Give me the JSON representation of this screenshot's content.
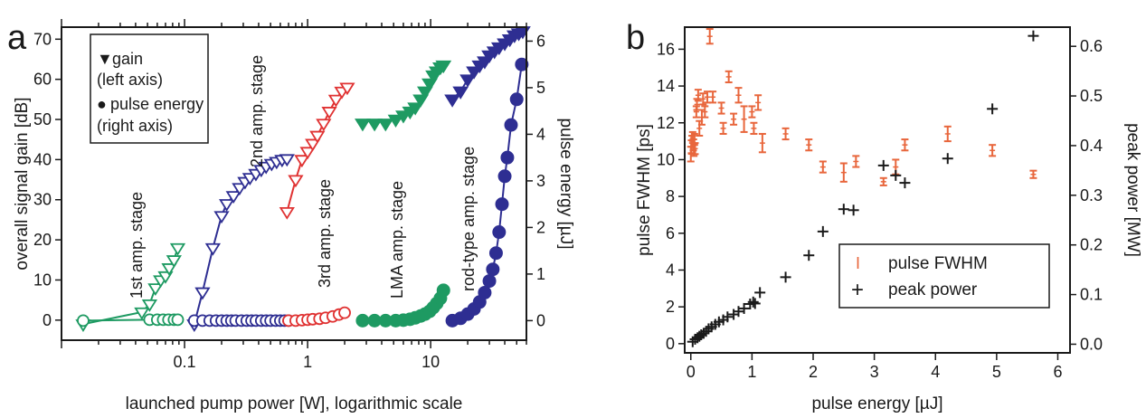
{
  "chart_data": [
    {
      "panel": "a",
      "type": "line",
      "xlabel": "launched pump power [W], logarithmic scale",
      "ylabel": "overall signal gain [dB]",
      "y2label": "pulse energy [µJ]",
      "xscale": "log",
      "xlim": [
        0.01,
        60
      ],
      "ylim": [
        -5,
        73
      ],
      "y2lim": [
        -0.42,
        6.3
      ],
      "xticks": [
        {
          "v": 0.1,
          "label": "0.1"
        },
        {
          "v": 1,
          "label": "1"
        },
        {
          "v": 10,
          "label": "10"
        }
      ],
      "yticks": [
        "0",
        "10",
        "20",
        "30",
        "40",
        "50",
        "60",
        "70"
      ],
      "y2ticks": [
        "0",
        "1",
        "2",
        "3",
        "4",
        "5",
        "6"
      ],
      "legend": {
        "placement": "top-left",
        "entries": [
          {
            "marker": "▼",
            "line1": "gain",
            "line2": "(left axis)"
          },
          {
            "marker": "●",
            "line1": "pulse energy",
            "line2": "(right axis)"
          }
        ]
      },
      "annotations": [
        "1st amp. stage",
        "2nd amp. stage",
        "3rd amp. stage",
        "LMA amp. stage",
        "rod-type amp. stage"
      ],
      "series": [
        {
          "stage": "1st",
          "axis": "left",
          "marker": "triangle-open",
          "line": true,
          "color": "#1e9a62",
          "points": [
            [
              0.015,
              -1
            ],
            [
              0.045,
              2
            ],
            [
              0.052,
              4
            ],
            [
              0.058,
              8
            ],
            [
              0.064,
              10
            ],
            [
              0.07,
              11
            ],
            [
              0.075,
              13
            ],
            [
              0.082,
              15
            ],
            [
              0.088,
              18
            ]
          ]
        },
        {
          "stage": "1st",
          "axis": "right",
          "marker": "circle-open",
          "line": true,
          "color": "#1e9a62",
          "points": [
            [
              0.015,
              0.0
            ],
            [
              0.052,
              0.02
            ],
            [
              0.06,
              0.02
            ],
            [
              0.067,
              0.02
            ],
            [
              0.074,
              0.02
            ],
            [
              0.082,
              0.02
            ],
            [
              0.088,
              0.02
            ]
          ]
        },
        {
          "stage": "2nd",
          "axis": "left",
          "marker": "triangle-open",
          "line": true,
          "color": "#2e2e92",
          "points": [
            [
              0.12,
              -1
            ],
            [
              0.14,
              7
            ],
            [
              0.17,
              18
            ],
            [
              0.2,
              26
            ],
            [
              0.22,
              29
            ],
            [
              0.25,
              31
            ],
            [
              0.28,
              33
            ],
            [
              0.31,
              34.5
            ],
            [
              0.34,
              35.5
            ],
            [
              0.38,
              36.5
            ],
            [
              0.42,
              37.5
            ],
            [
              0.46,
              38.3
            ],
            [
              0.51,
              39
            ],
            [
              0.56,
              39.5
            ],
            [
              0.62,
              40
            ],
            [
              0.68,
              40.2
            ]
          ]
        },
        {
          "stage": "2nd",
          "axis": "right",
          "marker": "circle-open",
          "line": true,
          "color": "#2e2e92",
          "points": [
            [
              0.12,
              0.0
            ],
            [
              0.14,
              0.0
            ],
            [
              0.16,
              0.0
            ],
            [
              0.18,
              0.0
            ],
            [
              0.2,
              0.0
            ],
            [
              0.22,
              0.0
            ],
            [
              0.24,
              0.0
            ],
            [
              0.26,
              0.0
            ],
            [
              0.29,
              0.0
            ],
            [
              0.32,
              0.0
            ],
            [
              0.35,
              0.0
            ],
            [
              0.38,
              0.0
            ],
            [
              0.42,
              0.0
            ],
            [
              0.46,
              0.0
            ],
            [
              0.5,
              0.0
            ],
            [
              0.55,
              0.0
            ],
            [
              0.6,
              0.0
            ],
            [
              0.65,
              0.0
            ],
            [
              0.7,
              0.0
            ]
          ]
        },
        {
          "stage": "3rd",
          "axis": "left",
          "marker": "triangle-open",
          "line": true,
          "color": "#e03232",
          "points": [
            [
              0.68,
              27
            ],
            [
              0.8,
              35
            ],
            [
              0.9,
              40
            ],
            [
              1.0,
              42
            ],
            [
              1.1,
              44
            ],
            [
              1.2,
              46
            ],
            [
              1.35,
              49
            ],
            [
              1.5,
              52
            ],
            [
              1.7,
              55
            ],
            [
              1.9,
              57
            ],
            [
              2.1,
              58
            ]
          ]
        },
        {
          "stage": "3rd",
          "axis": "right",
          "marker": "circle-open",
          "line": true,
          "color": "#e03232",
          "points": [
            [
              0.7,
              0.0
            ],
            [
              0.8,
              0.0
            ],
            [
              0.9,
              0.01
            ],
            [
              1.0,
              0.02
            ],
            [
              1.1,
              0.03
            ],
            [
              1.25,
              0.04
            ],
            [
              1.4,
              0.06
            ],
            [
              1.6,
              0.09
            ],
            [
              1.8,
              0.13
            ],
            [
              2.0,
              0.17
            ]
          ]
        },
        {
          "stage": "LMA",
          "axis": "left",
          "marker": "triangle-filled",
          "line": false,
          "color": "#1e9a62",
          "points": [
            [
              2.8,
              49
            ],
            [
              3.5,
              49
            ],
            [
              4.3,
              49
            ],
            [
              5.2,
              50
            ],
            [
              6.0,
              51
            ],
            [
              6.8,
              52
            ],
            [
              7.5,
              53
            ],
            [
              8.3,
              55
            ],
            [
              9.0,
              57
            ],
            [
              9.8,
              59
            ],
            [
              10.5,
              61
            ],
            [
              11.2,
              62
            ],
            [
              12.0,
              63
            ],
            [
              12.7,
              63.5
            ]
          ]
        },
        {
          "stage": "LMA",
          "axis": "right",
          "marker": "circle-filled",
          "line": false,
          "color": "#1e9a62",
          "points": [
            [
              2.8,
              0.0
            ],
            [
              3.5,
              0.0
            ],
            [
              4.3,
              0.0
            ],
            [
              5.2,
              0.0
            ],
            [
              6.0,
              0.01
            ],
            [
              6.8,
              0.03
            ],
            [
              7.5,
              0.06
            ],
            [
              8.3,
              0.1
            ],
            [
              9.0,
              0.14
            ],
            [
              9.8,
              0.2
            ],
            [
              10.5,
              0.28
            ],
            [
              11.2,
              0.37
            ],
            [
              12.0,
              0.48
            ],
            [
              12.7,
              0.65
            ]
          ]
        },
        {
          "stage": "rod-type",
          "axis": "left",
          "marker": "triangle-filled",
          "line": true,
          "color": "#2e2e92",
          "points": [
            [
              15,
              55
            ],
            [
              17.5,
              57
            ],
            [
              20,
              60
            ],
            [
              22.5,
              62
            ],
            [
              25,
              63.5
            ],
            [
              27.5,
              64.5
            ],
            [
              30,
              66
            ],
            [
              33,
              67
            ],
            [
              36,
              68
            ],
            [
              40,
              69
            ],
            [
              44,
              70
            ],
            [
              48,
              71
            ],
            [
              52,
              71.5
            ],
            [
              56,
              72
            ]
          ]
        },
        {
          "stage": "rod-type",
          "axis": "right",
          "marker": "circle-filled",
          "line": true,
          "color": "#2e2e92",
          "points": [
            [
              15,
              0.0
            ],
            [
              17.5,
              0.05
            ],
            [
              20,
              0.14
            ],
            [
              22.5,
              0.25
            ],
            [
              25,
              0.4
            ],
            [
              27.5,
              0.6
            ],
            [
              30,
              0.85
            ],
            [
              32,
              1.1
            ],
            [
              34,
              1.45
            ],
            [
              36,
              1.9
            ],
            [
              38,
              2.5
            ],
            [
              40,
              3.1
            ],
            [
              42,
              3.5
            ],
            [
              45,
              4.2
            ],
            [
              50,
              4.75
            ],
            [
              55,
              5.5
            ]
          ]
        }
      ]
    },
    {
      "panel": "b",
      "type": "scatter",
      "xlabel": "pulse energy [µJ]",
      "ylabel": "pulse FWHM [ps]",
      "y2label": "peak power [MW]",
      "xlim": [
        -0.1,
        6.2
      ],
      "ylim": [
        -0.5,
        17.2
      ],
      "y2lim": [
        -0.0174,
        0.6386
      ],
      "xticks": [
        "0",
        "1",
        "2",
        "3",
        "4",
        "5",
        "6"
      ],
      "yticks": [
        "0",
        "2",
        "4",
        "6",
        "8",
        "10",
        "12",
        "14",
        "16"
      ],
      "y2ticks": [
        "0.0",
        "0.1",
        "0.2",
        "0.3",
        "0.4",
        "0.5",
        "0.6"
      ],
      "legend": {
        "placement": "bottom-right",
        "entries": [
          {
            "marker": "I",
            "label": "pulse FWHM"
          },
          {
            "marker": "+",
            "label": "peak power"
          }
        ]
      },
      "series": [
        {
          "name": "pulse FWHM",
          "axis": "left",
          "marker": "errorbar",
          "color": "#e8663c",
          "points": [
            [
              0.0,
              10.3,
              0.4
            ],
            [
              0.01,
              10.7,
              0.35
            ],
            [
              0.02,
              11.0,
              0.3
            ],
            [
              0.03,
              11.2,
              0.3
            ],
            [
              0.04,
              10.8,
              0.3
            ],
            [
              0.05,
              10.5,
              0.3
            ],
            [
              0.06,
              11.1,
              0.3
            ],
            [
              0.07,
              10.6,
              0.3
            ],
            [
              0.09,
              12.6,
              0.3
            ],
            [
              0.1,
              13.0,
              0.3
            ],
            [
              0.12,
              13.5,
              0.3
            ],
            [
              0.14,
              11.7,
              0.4
            ],
            [
              0.18,
              12.3,
              0.4
            ],
            [
              0.2,
              13.3,
              0.3
            ],
            [
              0.23,
              12.6,
              0.3
            ],
            [
              0.27,
              13.4,
              0.3
            ],
            [
              0.31,
              16.7,
              0.4
            ],
            [
              0.36,
              13.4,
              0.3
            ],
            [
              0.5,
              12.8,
              0.3
            ],
            [
              0.53,
              11.7,
              0.3
            ],
            [
              0.62,
              14.5,
              0.3
            ],
            [
              0.7,
              12.2,
              0.3
            ],
            [
              0.78,
              13.5,
              0.4
            ],
            [
              0.87,
              12.2,
              0.7
            ],
            [
              1.0,
              12.6,
              0.3
            ],
            [
              1.03,
              11.7,
              0.3
            ],
            [
              1.1,
              13.1,
              0.4
            ],
            [
              1.17,
              10.9,
              0.5
            ],
            [
              1.55,
              11.4,
              0.3
            ],
            [
              1.93,
              10.8,
              0.3
            ],
            [
              2.16,
              9.6,
              0.3
            ],
            [
              2.5,
              9.3,
              0.5
            ],
            [
              2.7,
              9.9,
              0.3
            ],
            [
              3.15,
              8.8,
              0.2
            ],
            [
              3.35,
              9.6,
              0.4
            ],
            [
              3.5,
              10.8,
              0.3
            ],
            [
              4.2,
              11.4,
              0.4
            ],
            [
              4.93,
              10.5,
              0.3
            ],
            [
              5.6,
              9.2,
              0.2
            ]
          ]
        },
        {
          "name": "peak power",
          "axis": "right",
          "marker": "plus",
          "color": "#1a1a1a",
          "points": [
            [
              0.03,
              0.005
            ],
            [
              0.07,
              0.01
            ],
            [
              0.11,
              0.013
            ],
            [
              0.14,
              0.016
            ],
            [
              0.17,
              0.019
            ],
            [
              0.21,
              0.022
            ],
            [
              0.25,
              0.026
            ],
            [
              0.29,
              0.031
            ],
            [
              0.34,
              0.035
            ],
            [
              0.4,
              0.04
            ],
            [
              0.46,
              0.045
            ],
            [
              0.53,
              0.049
            ],
            [
              0.6,
              0.055
            ],
            [
              0.7,
              0.06
            ],
            [
              0.78,
              0.066
            ],
            [
              0.87,
              0.072
            ],
            [
              0.97,
              0.081
            ],
            [
              1.02,
              0.085
            ],
            [
              1.05,
              0.082
            ],
            [
              1.13,
              0.104
            ],
            [
              1.55,
              0.135
            ],
            [
              1.93,
              0.179
            ],
            [
              2.16,
              0.227
            ],
            [
              2.5,
              0.272
            ],
            [
              2.66,
              0.27
            ],
            [
              3.15,
              0.36
            ],
            [
              3.35,
              0.34
            ],
            [
              3.5,
              0.325
            ],
            [
              4.2,
              0.374
            ],
            [
              4.93,
              0.474
            ],
            [
              5.6,
              0.621
            ]
          ]
        }
      ]
    }
  ],
  "panel_labels": [
    "a",
    "b"
  ]
}
